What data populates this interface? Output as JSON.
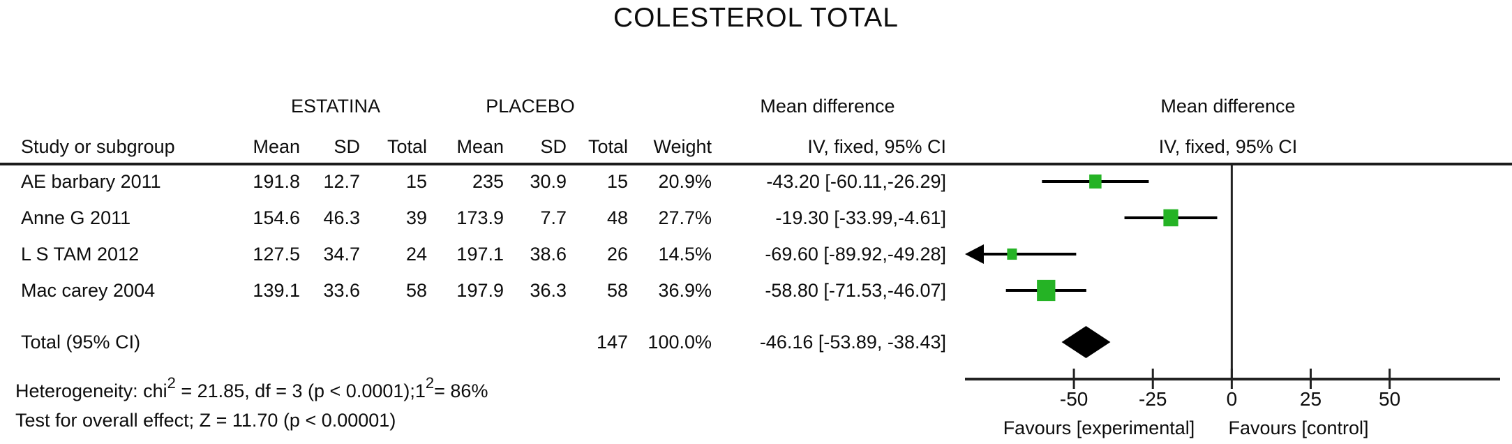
{
  "title": "COLESTEROL TOTAL",
  "table": {
    "group_headers": {
      "experimental": "ESTATINA",
      "control": "PLACEBO"
    },
    "col_headers": {
      "study": "Study or subgroup",
      "mean1": "Mean",
      "sd1": "SD",
      "total1": "Total",
      "mean2": "Mean",
      "sd2": "SD",
      "total2": "Total",
      "weight": "Weight",
      "md_line1": "Mean difference",
      "md_line2": "IV, fixed, 95% CI"
    },
    "plot_headers": {
      "line1": "Mean difference",
      "line2": "IV, fixed, 95% CI"
    },
    "rows": [
      {
        "study": "AE barbary 2011",
        "mean1": "191.8",
        "sd1": "12.7",
        "total1": "15",
        "mean2": "235",
        "sd2": "30.9",
        "total2": "15",
        "weight": "20.9%",
        "md": "-43.20 [-60.11,-26.29]"
      },
      {
        "study": "Anne G 2011",
        "mean1": "154.6",
        "sd1": "46.3",
        "total1": "39",
        "mean2": "173.9",
        "sd2": "7.7",
        "total2": "48",
        "weight": "27.7%",
        "md": "-19.30 [-33.99,-4.61]"
      },
      {
        "study": "L S TAM 2012",
        "mean1": "127.5",
        "sd1": "34.7",
        "total1": "24",
        "mean2": "197.1",
        "sd2": "38.6",
        "total2": "26",
        "weight": "14.5%",
        "md": "-69.60 [-89.92,-49.28]"
      },
      {
        "study": "Mac carey 2004",
        "mean1": "139.1",
        "sd1": "33.6",
        "total1": "58",
        "mean2": "197.9",
        "sd2": "36.3",
        "total2": "58",
        "weight": "36.9%",
        "md": "-58.80 [-71.53,-46.07]"
      }
    ],
    "total_row": {
      "label": "Total (95% CI)",
      "total2": "147",
      "weight": "100.0%",
      "md": "-46.16 [-53.89, -38.43]"
    }
  },
  "footnotes": {
    "het_p1": "Heterogeneity: chi",
    "het_sup1": "2",
    "het_p2": " =  21.85, df = 3 (p < 0.0001);1",
    "het_sup2": "2",
    "het_p3": "= 86%",
    "overall_test": "Test for overall effect; Z = 11.70 (p < 0.00001)"
  },
  "chart_data": {
    "type": "forest",
    "title": "COLESTEROL TOTAL",
    "effect_label": "Mean difference — IV, fixed, 95% CI",
    "studies": [
      {
        "name": "AE barbary 2011",
        "md": -43.2,
        "ci_lo": -60.11,
        "ci_hi": -26.29,
        "weight_pct": 20.9
      },
      {
        "name": "Anne G 2011",
        "md": -19.3,
        "ci_lo": -33.99,
        "ci_hi": -4.61,
        "weight_pct": 27.7
      },
      {
        "name": "L S TAM 2012",
        "md": -69.6,
        "ci_lo": -89.92,
        "ci_hi": -49.28,
        "weight_pct": 14.5
      },
      {
        "name": "Mac carey 2004",
        "md": -58.8,
        "ci_lo": -71.53,
        "ci_hi": -46.07,
        "weight_pct": 36.9
      }
    ],
    "overall": {
      "name": "Total (95% CI)",
      "md": -46.16,
      "ci_lo": -53.89,
      "ci_hi": -38.43,
      "weight_pct": 100.0
    },
    "xaxis": {
      "ticks": [
        -50,
        -25,
        0,
        25,
        50
      ],
      "xlim": [
        -84.5,
        85
      ],
      "zero_line": 0,
      "favours_left": "Favours [experimental]",
      "favours_right": "Favours [control]"
    },
    "style": {
      "marker_color": "#25b325",
      "line_color": "#000000",
      "diamond_color": "#000000"
    }
  }
}
